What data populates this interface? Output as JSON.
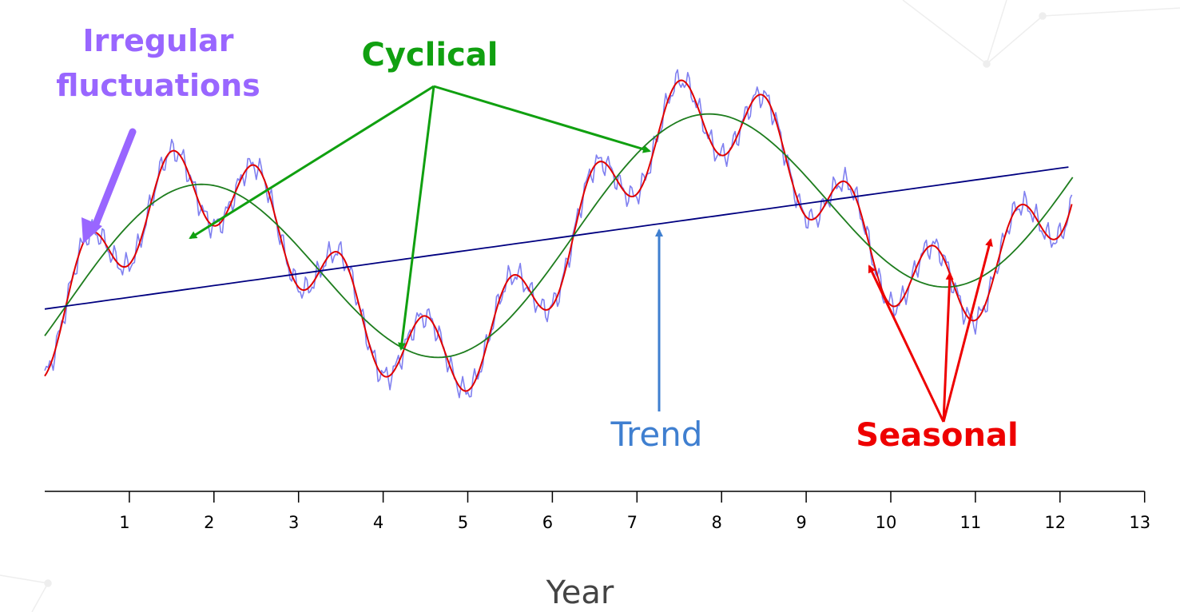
{
  "chart_data": {
    "type": "line",
    "xlabel": "Year",
    "xlim": [
      0,
      13
    ],
    "xticks": [
      1,
      2,
      3,
      4,
      5,
      6,
      7,
      8,
      9,
      10,
      11,
      12,
      13
    ],
    "grid": false,
    "axes": {
      "y_axis_visible": false
    },
    "components": {
      "trend": {
        "start_level": 0.6,
        "slope_per_year": 0.204
      },
      "cyclical": {
        "amplitude": 1.8,
        "period_years": 6,
        "peak_year": 1.75
      },
      "seasonal": {
        "amplitude": 0.7,
        "period_years": 1,
        "peak_year": 1.5
      },
      "irregular": {
        "amplitude": 0.25
      }
    },
    "series": [
      {
        "name": "Irregular fluctuations",
        "color": "#8080f0"
      },
      {
        "name": "Seasonal",
        "color": "#e00000"
      },
      {
        "name": "Cyclical",
        "color": "#1e7d1e"
      },
      {
        "name": "Trend",
        "color": "#000080"
      }
    ],
    "annotations": [
      {
        "text_lines": [
          "Irregular",
          "fluctuations"
        ],
        "color": "#9966ff",
        "icon": "thick-arrow-down-left"
      },
      {
        "text_lines": [
          "Cyclical"
        ],
        "color": "#10a010",
        "targets_year": [
          1.75,
          4.25,
          7.1
        ]
      },
      {
        "text_lines": [
          "Trend"
        ],
        "color": "#3f7fd0",
        "targets_year": [
          7.25
        ]
      },
      {
        "text_lines": [
          "Seasonal"
        ],
        "color": "#ee0000",
        "targets_year": [
          9.75,
          10.75,
          11.2
        ]
      }
    ]
  }
}
